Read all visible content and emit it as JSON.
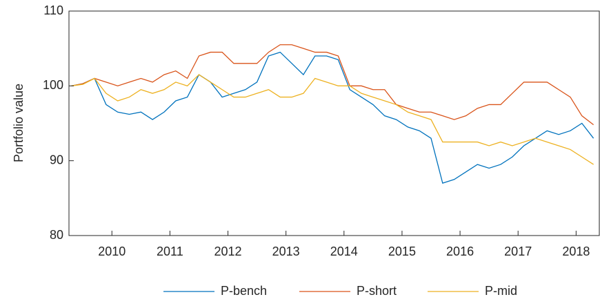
{
  "chart_data": {
    "type": "line",
    "y_label": "Portfolio value",
    "x": [
      2009.3,
      2009.5,
      2009.7,
      2009.9,
      2010.1,
      2010.3,
      2010.5,
      2010.7,
      2010.9,
      2011.1,
      2011.3,
      2011.5,
      2011.7,
      2011.9,
      2012.1,
      2012.3,
      2012.5,
      2012.7,
      2012.9,
      2013.1,
      2013.3,
      2013.5,
      2013.7,
      2013.9,
      2014.1,
      2014.3,
      2014.5,
      2014.7,
      2014.9,
      2015.1,
      2015.3,
      2015.5,
      2015.7,
      2015.9,
      2016.1,
      2016.3,
      2016.5,
      2016.7,
      2016.9,
      2017.1,
      2017.3,
      2017.5,
      2017.7,
      2017.9,
      2018.1,
      2018.3
    ],
    "series": [
      {
        "name": "P-bench",
        "color": "#0072BD",
        "values": [
          100,
          100.3,
          101,
          97.5,
          96.5,
          96.2,
          96.5,
          95.5,
          96.5,
          98,
          98.5,
          101.5,
          100.5,
          98.5,
          99,
          99.5,
          100.5,
          104,
          104.5,
          103,
          101.5,
          104,
          104,
          103.5,
          99.5,
          98.5,
          97.5,
          96,
          95.5,
          94.5,
          94,
          93,
          87,
          87.5,
          88.5,
          89.5,
          89,
          89.5,
          90.5,
          92,
          93,
          94,
          93.5,
          94,
          95,
          93
        ]
      },
      {
        "name": "P-short",
        "color": "#D95319",
        "values": [
          100,
          100.3,
          101,
          100.5,
          100,
          100.5,
          101,
          100.5,
          101.5,
          102,
          101,
          104,
          104.5,
          104.5,
          103,
          103,
          103,
          104.5,
          105.5,
          105.5,
          105,
          104.5,
          104.5,
          104,
          100,
          100,
          99.5,
          99.5,
          97.5,
          97,
          96.5,
          96.5,
          96,
          95.5,
          96,
          97,
          97.5,
          97.5,
          99,
          100.5,
          100.5,
          100.5,
          99.5,
          98.5,
          96,
          94.8
        ]
      },
      {
        "name": "P-mid",
        "color": "#EDB120",
        "values": [
          100,
          100.2,
          101,
          99,
          98,
          98.5,
          99.5,
          99,
          99.5,
          100.5,
          100,
          101.5,
          100.5,
          99.5,
          98.5,
          98.5,
          99,
          99.5,
          98.5,
          98.5,
          99,
          101,
          100.5,
          100,
          100,
          99,
          98.5,
          98,
          97.5,
          96.5,
          96,
          95.5,
          92.5,
          92.5,
          92.5,
          92.5,
          92,
          92.5,
          92,
          92.5,
          93,
          92.5,
          92,
          91.5,
          90.5,
          89.5
        ]
      }
    ],
    "xlim": [
      2009.26,
      2018.4
    ],
    "xticks": [
      2010,
      2011,
      2012,
      2013,
      2014,
      2015,
      2016,
      2017,
      2018
    ],
    "ylim": [
      80,
      110
    ],
    "yticks": [
      80,
      90,
      100,
      110
    ],
    "legend": "bottom"
  }
}
